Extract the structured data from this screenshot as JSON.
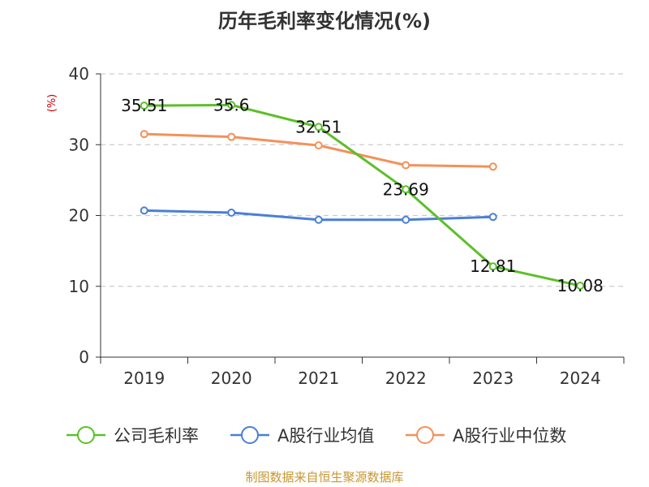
{
  "chart_data": {
    "type": "line",
    "title": "历年毛利率变化情况(%)",
    "ylabel": "(%)",
    "xlabel": "",
    "categories": [
      "2019",
      "2020",
      "2021",
      "2022",
      "2023",
      "2024"
    ],
    "ylim": [
      0,
      40
    ],
    "yticks": [
      "0",
      "10",
      "20",
      "30",
      "40"
    ],
    "grid": true,
    "legend_position": "bottom",
    "series": [
      {
        "name": "公司毛利率",
        "color": "#5cbf2a",
        "values": [
          35.51,
          35.6,
          32.51,
          23.69,
          12.81,
          10.08
        ],
        "labels": [
          "35.51",
          "35.6",
          "32.51",
          "23.69",
          "12.81",
          "10.08"
        ]
      },
      {
        "name": "A股行业均值",
        "color": "#4a7fd8",
        "values": [
          20.7,
          20.4,
          19.4,
          19.4,
          19.8,
          null
        ]
      },
      {
        "name": "A股行业中位数",
        "color": "#f4905a",
        "values": [
          31.5,
          31.1,
          29.9,
          27.1,
          26.9,
          null
        ]
      }
    ]
  },
  "footer": {
    "source": "制图数据来自恒生聚源数据库"
  }
}
